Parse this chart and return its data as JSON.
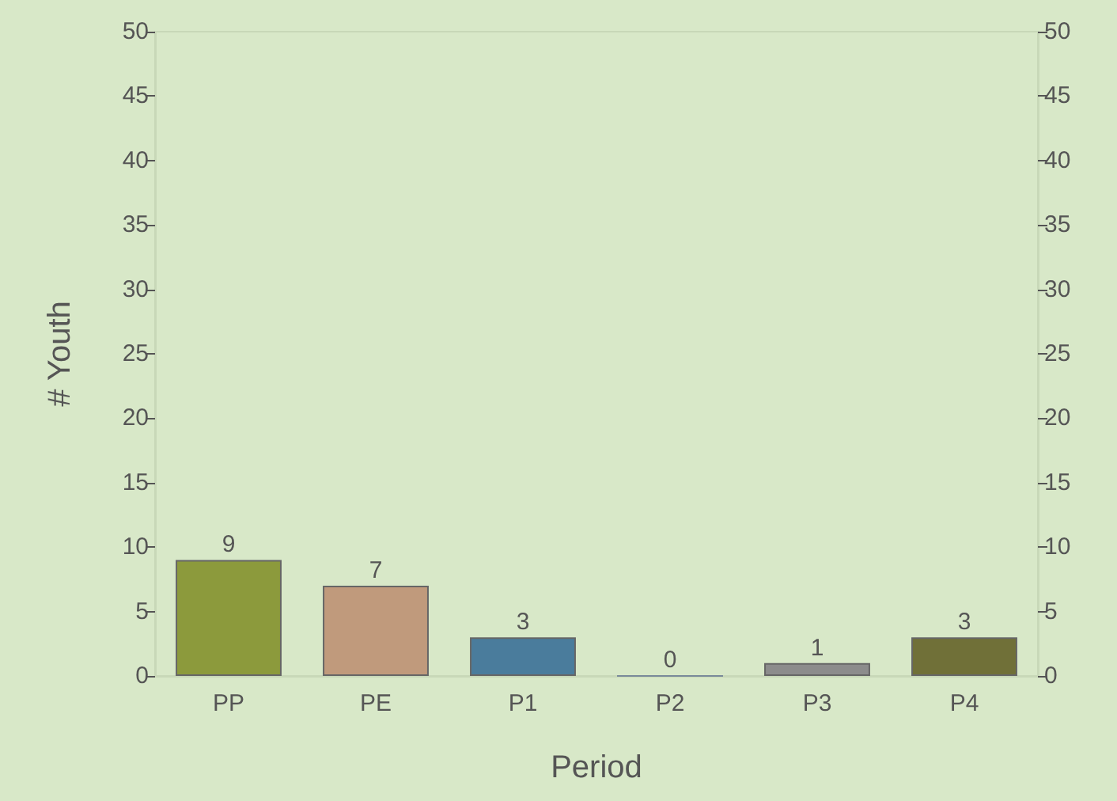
{
  "chart_data": {
    "type": "bar",
    "xlabel": "Period",
    "ylabel": "# Youth",
    "categories": [
      "PP",
      "PE",
      "P1",
      "P2",
      "P3",
      "P4"
    ],
    "values": [
      9,
      7,
      3,
      0,
      1,
      3
    ],
    "colors": [
      "#8c9a3c",
      "#c09a7c",
      "#4a7c9c",
      "#7a8a9a",
      "#8c8c8c",
      "#707038"
    ],
    "ylim": [
      0,
      50
    ],
    "yticks": [
      0,
      5,
      10,
      15,
      20,
      25,
      30,
      35,
      40,
      45,
      50
    ],
    "y2lim": [
      0,
      50
    ],
    "y2ticks": [
      0,
      5,
      10,
      15,
      20,
      25,
      30,
      35,
      40,
      45,
      50
    ],
    "data_labels": true,
    "grid": false
  }
}
